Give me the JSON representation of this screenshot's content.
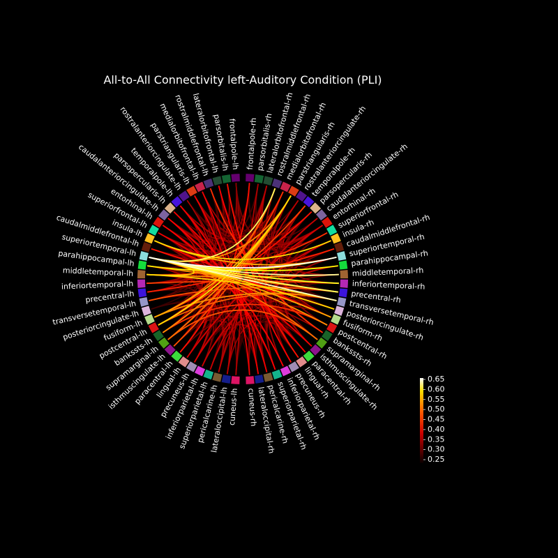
{
  "title": "All-to-All Connectivity left-Auditory Condition (PLI)",
  "nodes_left": [
    {
      "label": "frontalpole-lh",
      "color": "#64006e"
    },
    {
      "label": "parsorbitalis-lh",
      "color": "#146432"
    },
    {
      "label": "lateralorbitofrontal-lh",
      "color": "#234b32"
    },
    {
      "label": "rostralmiddlefrontal-lh",
      "color": "#4b3278"
    },
    {
      "label": "medialorbitofrontal-lh",
      "color": "#c8234b"
    },
    {
      "label": "parstriangularis-lh",
      "color": "#dc3c14"
    },
    {
      "label": "rostralanteriorcingulate-lh",
      "color": "#50148c"
    },
    {
      "label": "temporalpole-lh",
      "color": "#4614dc"
    },
    {
      "label": "parsopercularis-lh",
      "color": "#dcb48c"
    },
    {
      "label": "caudalanteriorcingulate-lh",
      "color": "#7d64a0"
    },
    {
      "label": "entorhinal-lh",
      "color": "#dc140a"
    },
    {
      "label": "superiorfrontal-lh",
      "color": "#14dca0"
    },
    {
      "label": "insula-lh",
      "color": "#ffc020"
    },
    {
      "label": "caudalmiddlefrontal-lh",
      "color": "#641e0a"
    },
    {
      "label": "superiortemporal-lh",
      "color": "#8cdcdc"
    },
    {
      "label": "parahippocampal-lh",
      "color": "#14dc3c"
    },
    {
      "label": "middletemporal-lh",
      "color": "#a06432"
    },
    {
      "label": "inferiortemporal-lh",
      "color": "#b428b4"
    },
    {
      "label": "precentral-lh",
      "color": "#3c14dc"
    },
    {
      "label": "transversetemporal-lh",
      "color": "#9696c8"
    },
    {
      "label": "posteriorcingulate-lh",
      "color": "#dcb4dc"
    },
    {
      "label": "fusiform-lh",
      "color": "#b4dc8c"
    },
    {
      "label": "postcentral-lh",
      "color": "#dc1414"
    },
    {
      "label": "bankssts-lh",
      "color": "#196428"
    },
    {
      "label": "supramarginal-lh",
      "color": "#50a014"
    },
    {
      "label": "isthmuscingulate-lh",
      "color": "#8c148c"
    },
    {
      "label": "paracentral-lh",
      "color": "#3cdc3c"
    },
    {
      "label": "lingual-lh",
      "color": "#e18c8c"
    },
    {
      "label": "precuneus-lh",
      "color": "#a08cb4"
    },
    {
      "label": "inferiorparietal-lh",
      "color": "#dc3cdc"
    },
    {
      "label": "superiorparietal-lh",
      "color": "#14b48c"
    },
    {
      "label": "pericalcarine-lh",
      "color": "#785a32"
    },
    {
      "label": "lateraloccipital-lh",
      "color": "#141e8c"
    },
    {
      "label": "cuneus-lh",
      "color": "#dc1464"
    }
  ],
  "nodes_right": [
    {
      "label": "frontalpole-rh",
      "color": "#64006e"
    },
    {
      "label": "parsorbitalis-rh",
      "color": "#146432"
    },
    {
      "label": "lateralorbitofrontal-rh",
      "color": "#234b32"
    },
    {
      "label": "rostralmiddlefrontal-rh",
      "color": "#4b3278"
    },
    {
      "label": "medialorbitofrontal-rh",
      "color": "#c8234b"
    },
    {
      "label": "parstriangularis-rh",
      "color": "#dc3c14"
    },
    {
      "label": "rostralanteriorcingulate-rh",
      "color": "#50148c"
    },
    {
      "label": "temporalpole-rh",
      "color": "#4614dc"
    },
    {
      "label": "parsopercularis-rh",
      "color": "#dcb48c"
    },
    {
      "label": "caudalanteriorcingulate-rh",
      "color": "#7d64a0"
    },
    {
      "label": "entorhinal-rh",
      "color": "#dc140a"
    },
    {
      "label": "superiorfrontal-rh",
      "color": "#14dca0"
    },
    {
      "label": "insula-rh",
      "color": "#ffc020"
    },
    {
      "label": "caudalmiddlefrontal-rh",
      "color": "#641e0a"
    },
    {
      "label": "superiortemporal-rh",
      "color": "#8cdcdc"
    },
    {
      "label": "parahippocampal-rh",
      "color": "#14dc3c"
    },
    {
      "label": "middletemporal-rh",
      "color": "#a06432"
    },
    {
      "label": "inferiortemporal-rh",
      "color": "#b428b4"
    },
    {
      "label": "precentral-rh",
      "color": "#3c14dc"
    },
    {
      "label": "transversetemporal-rh",
      "color": "#9696c8"
    },
    {
      "label": "posteriorcingulate-rh",
      "color": "#dcb4dc"
    },
    {
      "label": "fusiform-rh",
      "color": "#b4dc8c"
    },
    {
      "label": "postcentral-rh",
      "color": "#dc1414"
    },
    {
      "label": "bankssts-rh",
      "color": "#196428"
    },
    {
      "label": "supramarginal-rh",
      "color": "#50a014"
    },
    {
      "label": "isthmuscingulate-rh",
      "color": "#8c148c"
    },
    {
      "label": "paracentral-rh",
      "color": "#3cdc3c"
    },
    {
      "label": "lingual-rh",
      "color": "#e18c8c"
    },
    {
      "label": "precuneus-rh",
      "color": "#a08cb4"
    },
    {
      "label": "inferiorparietal-rh",
      "color": "#dc3cdc"
    },
    {
      "label": "superiorparietal-rh",
      "color": "#14b48c"
    },
    {
      "label": "pericalcarine-rh",
      "color": "#785a32"
    },
    {
      "label": "lateraloccipital-rh",
      "color": "#141e8c"
    },
    {
      "label": "cuneus-rh",
      "color": "#dc1464"
    }
  ],
  "colorbar": {
    "ticks": [
      "0.65",
      "0.60",
      "0.55",
      "0.50",
      "0.45",
      "0.40",
      "0.35",
      "0.30",
      "0.25"
    ],
    "colormap": "hot",
    "range": [
      0.25,
      0.65
    ]
  },
  "connections": [
    {
      "from": "superiortemporal-lh",
      "to": "superiortemporal-rh",
      "value": 0.65
    },
    {
      "from": "superiortemporal-lh",
      "to": "middletemporal-rh",
      "value": 0.62
    },
    {
      "from": "superiortemporal-lh",
      "to": "transversetemporal-rh",
      "value": 0.63
    },
    {
      "from": "superiortemporal-lh",
      "to": "precentral-rh",
      "value": 0.6
    },
    {
      "from": "superiortemporal-lh",
      "to": "inferiortemporal-rh",
      "value": 0.58
    },
    {
      "from": "superiortemporal-lh",
      "to": "posteriorcingulate-rh",
      "value": 0.55
    },
    {
      "from": "superiortemporal-lh",
      "to": "rostralmiddlefrontal-rh",
      "value": 0.6
    },
    {
      "from": "superiortemporal-lh",
      "to": "parahippocampal-rh",
      "value": 0.57
    },
    {
      "from": "superiortemporal-lh",
      "to": "fusiform-rh",
      "value": 0.52
    },
    {
      "from": "superiortemporal-lh",
      "to": "postcentral-rh",
      "value": 0.5
    },
    {
      "from": "superiortemporal-lh",
      "to": "middletemporal-lh",
      "value": 0.55
    },
    {
      "from": "superiortemporal-lh",
      "to": "supramarginal-rh",
      "value": 0.48
    },
    {
      "from": "parahippocampal-lh",
      "to": "superiortemporal-rh",
      "value": 0.56
    },
    {
      "from": "parahippocampal-lh",
      "to": "precentral-rh",
      "value": 0.5
    },
    {
      "from": "middletemporal-lh",
      "to": "transversetemporal-rh",
      "value": 0.54
    },
    {
      "from": "middletemporal-lh",
      "to": "middletemporal-rh",
      "value": 0.5
    },
    {
      "from": "insula-lh",
      "to": "insula-rh",
      "value": 0.55
    },
    {
      "from": "insula-lh",
      "to": "superiortemporal-rh",
      "value": 0.52
    },
    {
      "from": "parstriangularis-rh",
      "to": "postcentral-lh",
      "value": 0.55
    },
    {
      "from": "parstriangularis-rh",
      "to": "fusiform-lh",
      "value": 0.52
    },
    {
      "from": "parstriangularis-rh",
      "to": "bankssts-lh",
      "value": 0.5
    },
    {
      "from": "parstriangularis-rh",
      "to": "supramarginal-lh",
      "value": 0.48
    },
    {
      "from": "parstriangularis-rh",
      "to": "isthmuscingulate-lh",
      "value": 0.46
    },
    {
      "from": "parstriangularis-rh",
      "to": "superiortemporal-lh",
      "value": 0.5
    },
    {
      "from": "rostralmiddlefrontal-rh",
      "to": "fusiform-lh",
      "value": 0.47
    },
    {
      "from": "rostralmiddlefrontal-rh",
      "to": "postcentral-lh",
      "value": 0.45
    },
    {
      "from": "medialorbitofrontal-rh",
      "to": "supramarginal-lh",
      "value": 0.44
    },
    {
      "from": "temporalpole-rh",
      "to": "postcentral-lh",
      "value": 0.45
    },
    {
      "from": "parsopercularis-rh",
      "to": "fusiform-lh",
      "value": 0.42
    },
    {
      "from": "frontalpole-rh",
      "to": "paracentral-lh",
      "value": 0.42
    },
    {
      "from": "superiorfrontal-rh",
      "to": "middletemporal-lh",
      "value": 0.44
    },
    {
      "from": "caudalmiddlefrontal-rh",
      "to": "precentral-lh",
      "value": 0.43
    },
    {
      "from": "transversetemporal-rh",
      "to": "fusiform-lh",
      "value": 0.5
    },
    {
      "from": "transversetemporal-rh",
      "to": "postcentral-lh",
      "value": 0.47
    },
    {
      "from": "precentral-rh",
      "to": "transversetemporal-lh",
      "value": 0.46
    },
    {
      "from": "postcentral-rh",
      "to": "bankssts-lh",
      "value": 0.44
    },
    {
      "from": "supramarginal-rh",
      "to": "supramarginal-lh",
      "value": 0.46
    },
    {
      "from": "inferiortemporal-rh",
      "to": "inferiortemporal-lh",
      "value": 0.45
    },
    {
      "from": "bankssts-rh",
      "to": "rostralmiddlefrontal-lh",
      "value": 0.44
    },
    {
      "from": "posteriorcingulate-rh",
      "to": "caudalmiddlefrontal-lh",
      "value": 0.42
    },
    {
      "from": "lingual-rh",
      "to": "parsorbitalis-lh",
      "value": 0.42
    },
    {
      "from": "precuneus-rh",
      "to": "lateralorbitofrontal-lh",
      "value": 0.41
    },
    {
      "from": "cuneus-rh",
      "to": "parstriangularis-lh",
      "value": 0.4
    },
    {
      "from": "lateraloccipital-rh",
      "to": "medialorbitofrontal-lh",
      "value": 0.4
    },
    {
      "from": "pericalcarine-rh",
      "to": "temporalpole-lh",
      "value": 0.4
    },
    {
      "from": "superiorparietal-rh",
      "to": "entorhinal-lh",
      "value": 0.41
    },
    {
      "from": "inferiorparietal-rh",
      "to": "caudalanteriorcingulate-lh",
      "value": 0.41
    },
    {
      "from": "paracentral-rh",
      "to": "parsopercularis-lh",
      "value": 0.4
    },
    {
      "from": "isthmuscingulate-rh",
      "to": "superiorfrontal-lh",
      "value": 0.4
    },
    {
      "from": "fusiform-rh",
      "to": "insula-lh",
      "value": 0.41
    },
    {
      "from": "entorhinal-rh",
      "to": "lingual-lh",
      "value": 0.38
    },
    {
      "from": "insula-rh",
      "to": "precuneus-lh",
      "value": 0.38
    },
    {
      "from": "parahippocampal-rh",
      "to": "inferiorparietal-lh",
      "value": 0.37
    },
    {
      "from": "caudalanteriorcingulate-rh",
      "to": "superiorparietal-lh",
      "value": 0.37
    },
    {
      "from": "rostralanteriorcingulate-rh",
      "to": "pericalcarine-lh",
      "value": 0.36
    },
    {
      "from": "lateralorbitofrontal-rh",
      "to": "lateraloccipital-lh",
      "value": 0.36
    },
    {
      "from": "parsorbitalis-rh",
      "to": "cuneus-lh",
      "value": 0.35
    }
  ]
}
